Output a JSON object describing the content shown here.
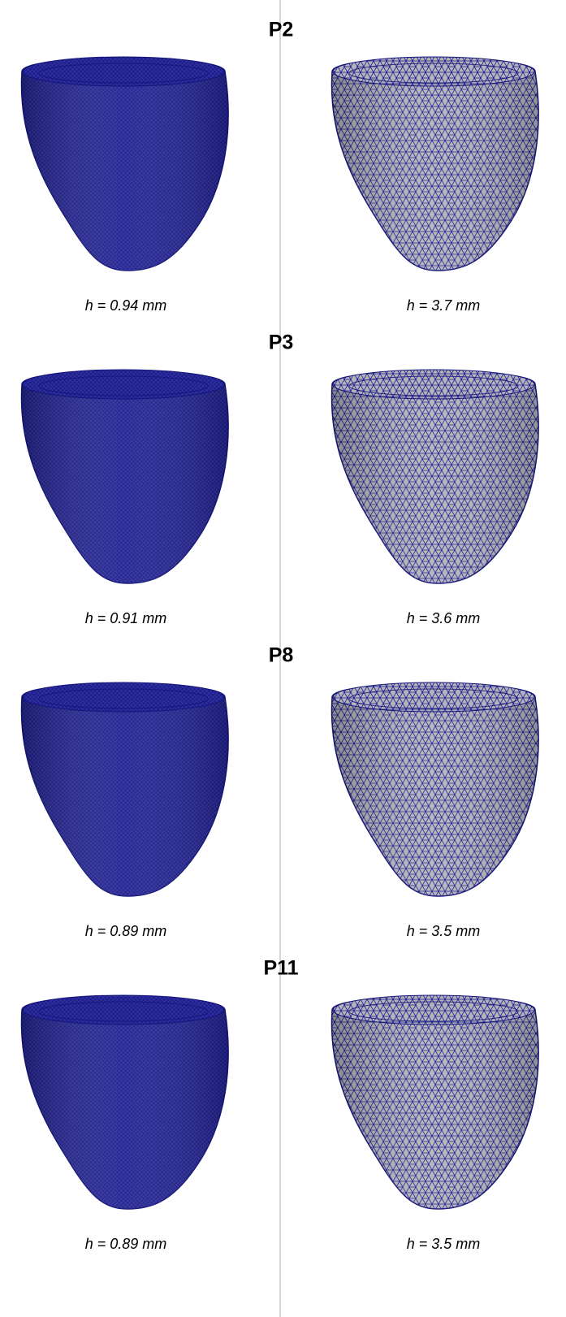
{
  "panels": [
    {
      "title": "P2",
      "left_caption": "h = 0.94 mm",
      "right_caption": "h = 3.7 mm"
    },
    {
      "title": "P3",
      "left_caption": "h = 0.91 mm",
      "right_caption": "h = 3.6 mm"
    },
    {
      "title": "P8",
      "left_caption": "h = 0.89 mm",
      "right_caption": "h = 3.5 mm"
    },
    {
      "title": "P11",
      "left_caption": "h = 0.89 mm",
      "right_caption": "h = 3.5 mm"
    }
  ]
}
